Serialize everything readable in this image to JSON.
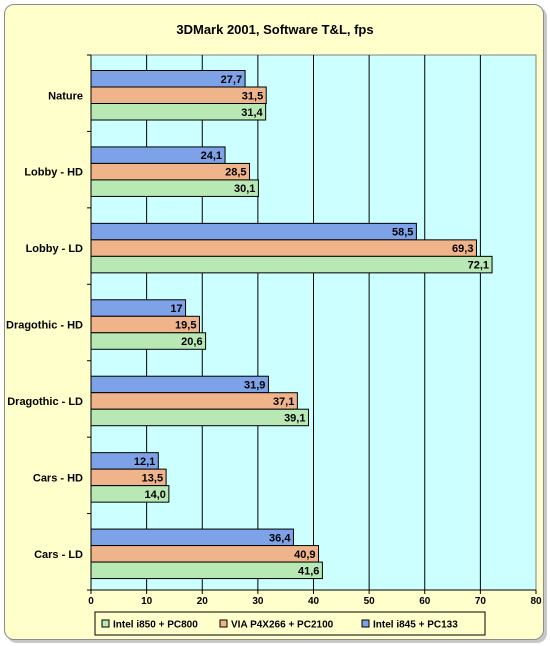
{
  "chart_data": {
    "type": "bar",
    "orientation": "horizontal",
    "title": "3DMark 2001, Software T&L, fps",
    "categories": [
      "Nature",
      "Lobby - HD",
      "Lobby - LD",
      "Dragothic - HD",
      "Dragothic - LD",
      "Cars - HD",
      "Cars - LD"
    ],
    "series": [
      {
        "name": "Intel i845 + PC133",
        "color": "#7da2e8",
        "values": [
          27.7,
          24.1,
          58.5,
          17,
          31.9,
          12.1,
          36.4
        ],
        "labels": [
          "27,7",
          "24,1",
          "58,5",
          "17",
          "31,9",
          "12,1",
          "36,4"
        ]
      },
      {
        "name": "VIA P4X266 + PC2100",
        "color": "#f0b48a",
        "values": [
          31.5,
          28.5,
          69.3,
          19.5,
          37.1,
          13.5,
          40.9
        ],
        "labels": [
          "31,5",
          "28,5",
          "69,3",
          "19,5",
          "37,1",
          "13,5",
          "40,9"
        ]
      },
      {
        "name": "Intel i850 + PC800",
        "color": "#b8e8b4",
        "values": [
          31.4,
          30.1,
          72.1,
          20.6,
          39.1,
          14.0,
          41.6
        ],
        "labels": [
          "31,4",
          "30,1",
          "72,1",
          "20,6",
          "39,1",
          "14,0",
          "41,6"
        ]
      }
    ],
    "xlim": [
      0,
      80
    ],
    "xticks": [
      0,
      10,
      20,
      30,
      40,
      50,
      60,
      70,
      80
    ],
    "legend_order": [
      "Intel i850 + PC800",
      "VIA P4X266 + PC2100",
      "Intel i845 + PC133"
    ],
    "legend_placement": "bottom",
    "plot_background": "#ccffff",
    "chart_background": "#ffffcc",
    "grid": true
  }
}
